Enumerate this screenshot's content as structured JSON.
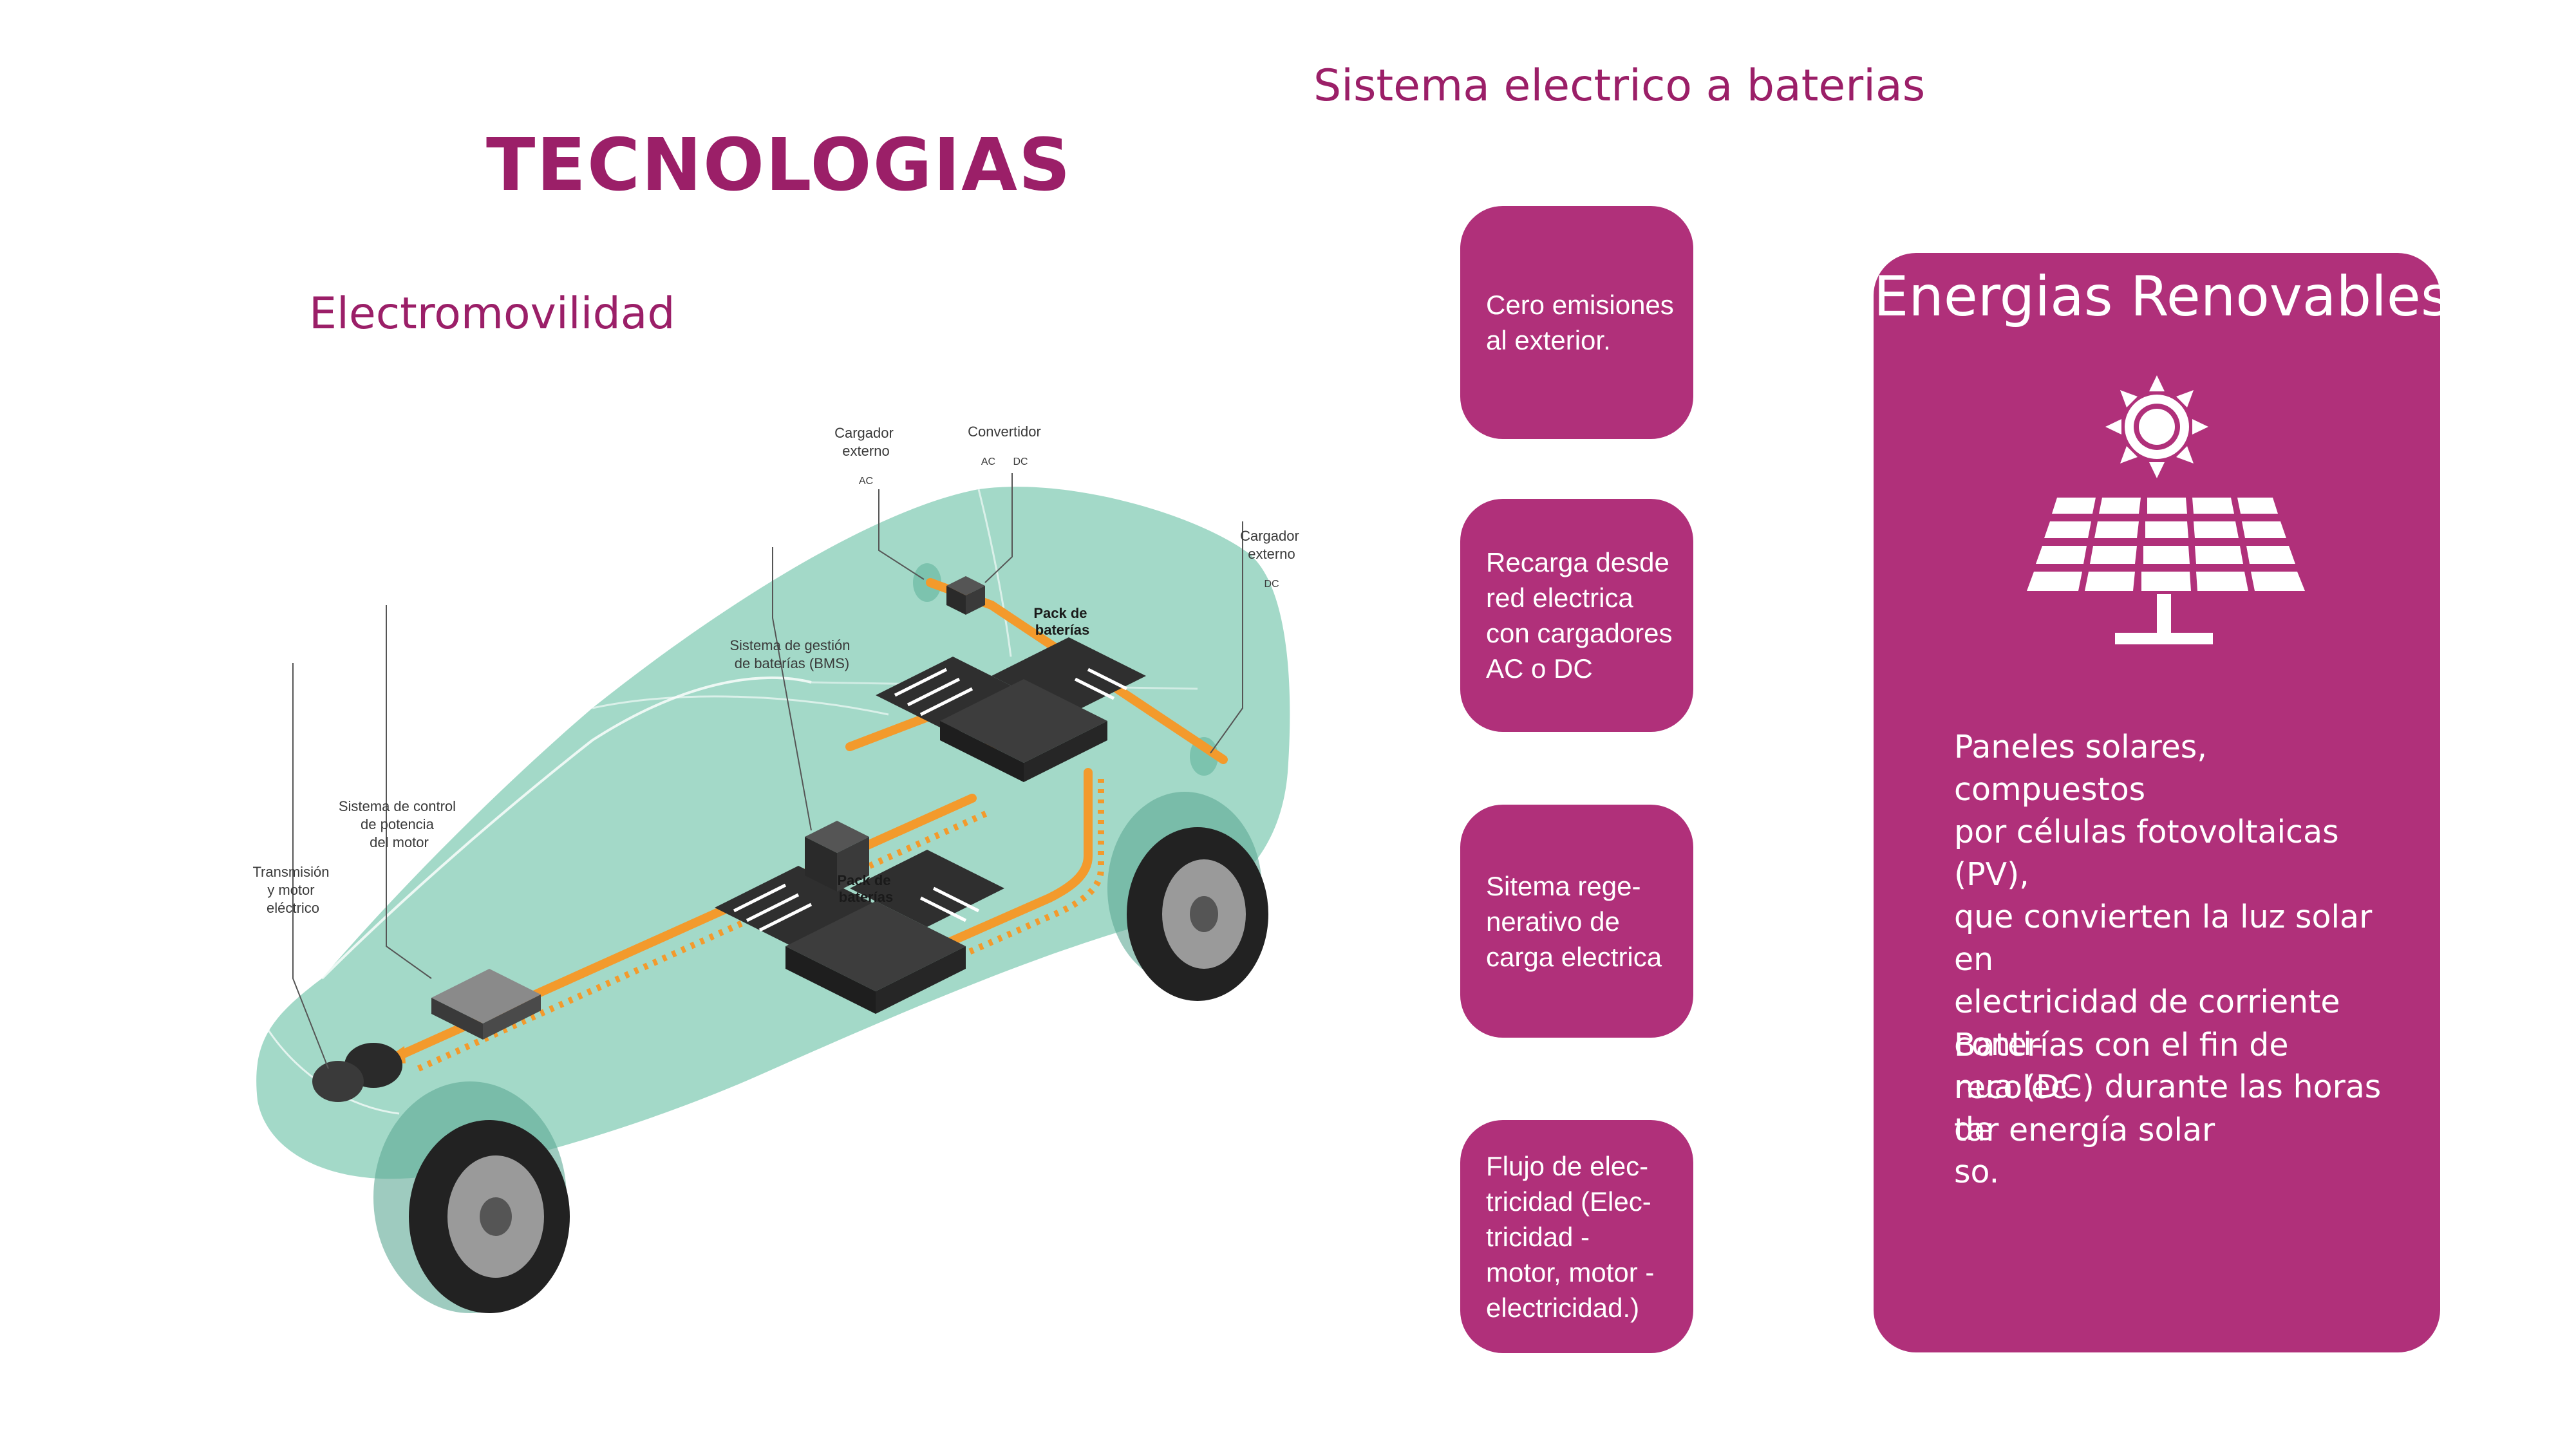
{
  "title": "TECNOLOGIAS",
  "subtitle_left": "Electromovilidad",
  "subtitle_right": "Sistema electrico a baterias",
  "diagram": {
    "labels": {
      "cargador_externo_ac": "Cargador\nexterno",
      "ac": "AC",
      "convertidor": "Convertidor",
      "conv_ac": "AC",
      "conv_dc": "DC",
      "cargador_externo_dc": "Cargador\nexterno",
      "dc": "DC",
      "pack_top": "Pack de\nbaterías",
      "bms": "Sistema de gestión\nde baterías (BMS)",
      "control": "Sistema de control\nde potencia\ndel motor",
      "pack_bottom": "Pack de\nbaterías",
      "transmision": "Transmisión\ny motor\neléctrico"
    },
    "colors": {
      "car_body": "#a3d9c8",
      "flow": "#f39a2c",
      "battery": "#333333"
    }
  },
  "cards": [
    "Cero emisiones\nal exterior.",
    "Recarga desde\nred electrica\ncon cargadores\nAC o DC",
    "Sitema rege-\nnerativo de\ncarga electrica",
    "Flujo de elec-\ntricidad (Elec-\ntricidad -\nmotor, motor -\nelectricidad.)"
  ],
  "panel": {
    "title": "Energias Renovables",
    "icons": [
      "sun-icon",
      "solar-panel-icon"
    ],
    "paragraph_1": "Paneles solares, compuestos\npor células fotovoltaicas (PV),\nque convierten la luz solar en\nelectricidad de corriente conti-\nnua (DC) durante las horas de\nso.",
    "paragraph_2": "Baterías con el fin de recolec-\ntar energía solar"
  },
  "colors": {
    "accent": "#9b1f68",
    "card": "#b0307a",
    "text_on_card": "#ffffff"
  }
}
